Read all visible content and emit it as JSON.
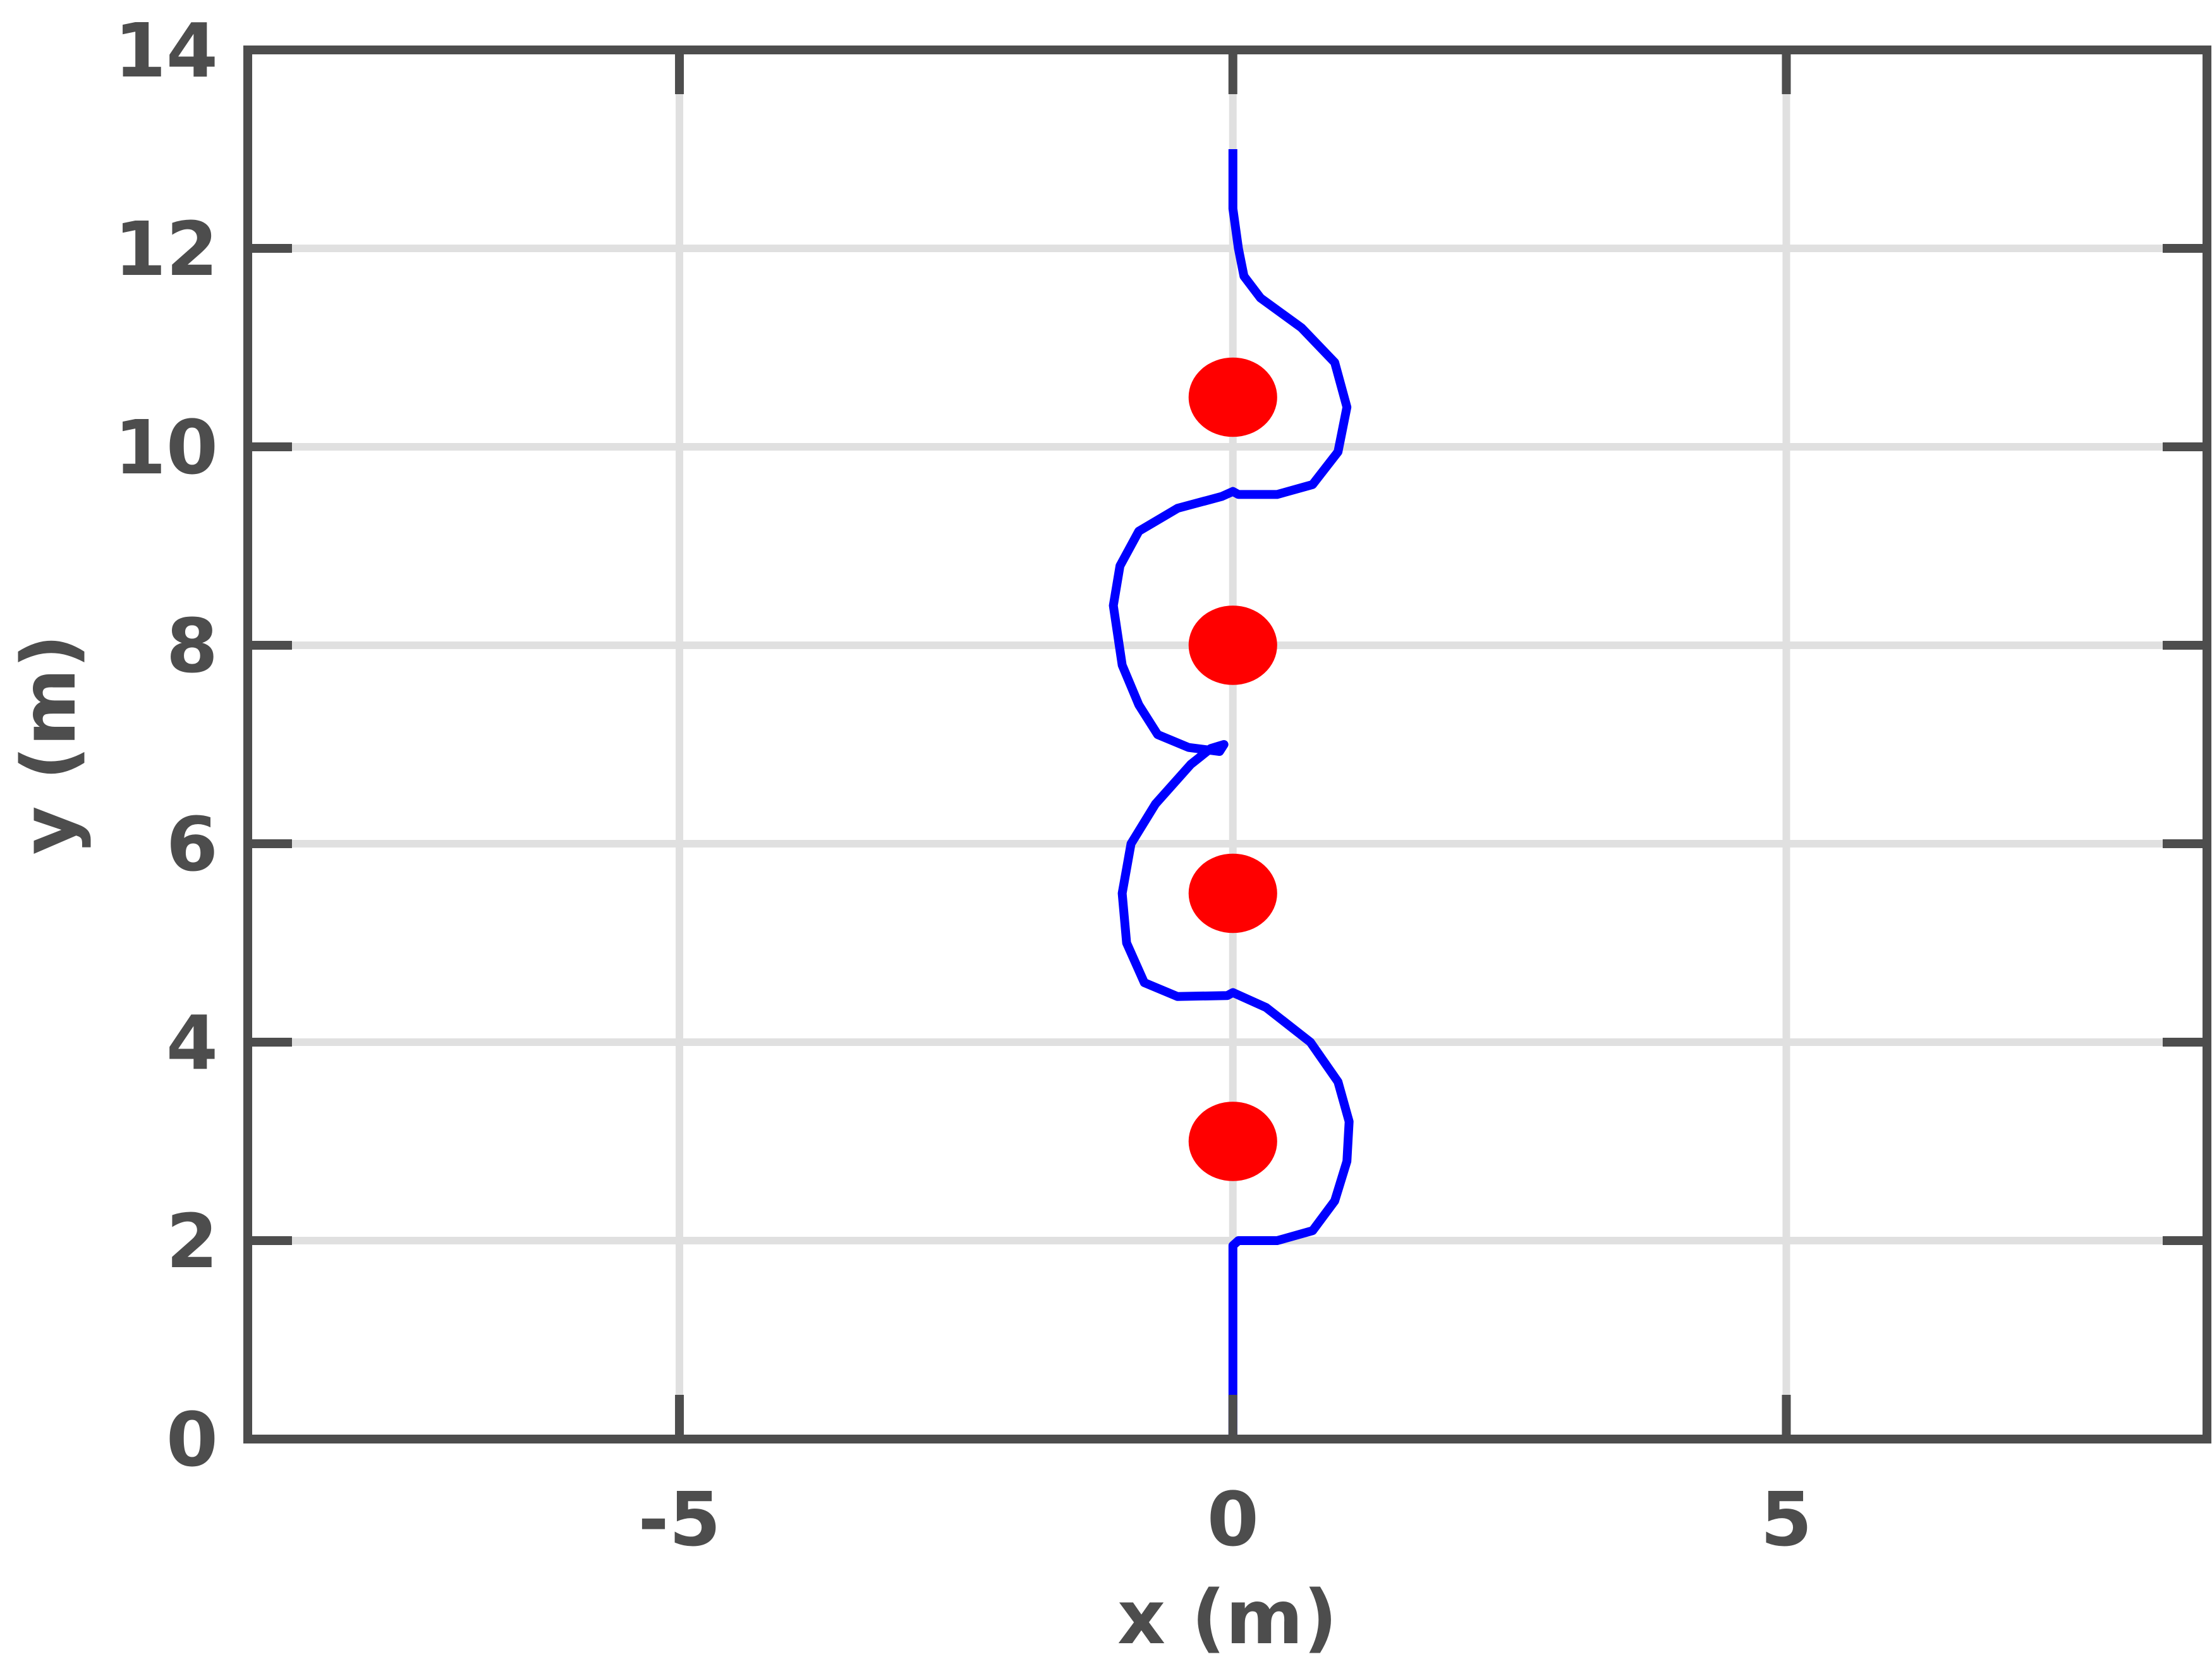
{
  "chart_data": {
    "type": "scatter",
    "xlabel": "x (m)",
    "ylabel": "y (m)",
    "xlim": [
      -8.9,
      8.8
    ],
    "ylim": [
      0,
      14
    ],
    "xticks": [
      -5,
      0,
      5
    ],
    "yticks": [
      0,
      2,
      4,
      6,
      8,
      10,
      12,
      14
    ],
    "xtick_labels": [
      "-5",
      "0",
      "5"
    ],
    "ytick_labels": [
      "0",
      "2",
      "4",
      "6",
      "8",
      "10",
      "12",
      "14"
    ],
    "grid": true,
    "colors": {
      "path": "#0000ff",
      "obstacles": "#ff0000",
      "axes": "#4d4d4d",
      "grid": "#e0e0e0"
    },
    "series": [
      {
        "kind": "line",
        "points": [
          [
            0,
            0
          ],
          [
            0,
            1.0
          ],
          [
            0,
            1.95
          ],
          [
            0.05,
            2.0
          ],
          [
            0.4,
            2.0
          ],
          [
            0.72,
            2.1
          ],
          [
            0.92,
            2.4
          ],
          [
            1.03,
            2.8
          ],
          [
            1.05,
            3.2
          ],
          [
            0.95,
            3.6
          ],
          [
            0.7,
            4.0
          ],
          [
            0.3,
            4.35
          ],
          [
            0,
            4.5
          ],
          [
            -0.05,
            4.47
          ],
          [
            -0.5,
            4.46
          ],
          [
            -0.8,
            4.6
          ],
          [
            -0.96,
            5.0
          ],
          [
            -1.0,
            5.5
          ],
          [
            -0.92,
            6.0
          ],
          [
            -0.7,
            6.4
          ],
          [
            -0.38,
            6.8
          ],
          [
            -0.2,
            6.96
          ],
          [
            -0.08,
            7.0
          ],
          [
            -0.12,
            6.93
          ],
          [
            -0.4,
            6.97
          ],
          [
            -0.68,
            7.1
          ],
          [
            -0.85,
            7.4
          ],
          [
            -1.0,
            7.8
          ],
          [
            -1.08,
            8.4
          ],
          [
            -1.02,
            8.8
          ],
          [
            -0.85,
            9.15
          ],
          [
            -0.5,
            9.38
          ],
          [
            -0.1,
            9.5
          ],
          [
            0,
            9.55
          ],
          [
            0.05,
            9.52
          ],
          [
            0.4,
            9.52
          ],
          [
            0.72,
            9.62
          ],
          [
            0.95,
            9.95
          ],
          [
            1.03,
            10.4
          ],
          [
            0.92,
            10.85
          ],
          [
            0.62,
            11.2
          ],
          [
            0.25,
            11.5
          ],
          [
            0.1,
            11.72
          ],
          [
            0.05,
            12.0
          ],
          [
            0,
            12.4
          ],
          [
            0,
            13.0
          ]
        ]
      },
      {
        "kind": "scatter",
        "points": [
          [
            0,
            3.0
          ],
          [
            0,
            5.5
          ],
          [
            0,
            8.0
          ],
          [
            0,
            10.5
          ]
        ],
        "radius": 0.4
      }
    ]
  }
}
